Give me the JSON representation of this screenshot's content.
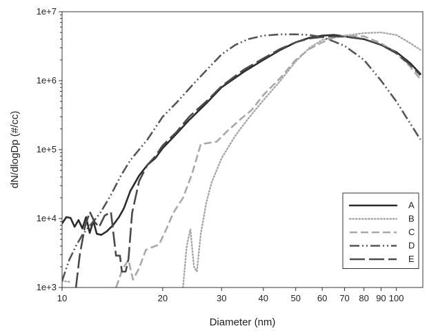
{
  "chart_data": {
    "type": "line",
    "xlabel": "Diameter (nm)",
    "ylabel": "dN/dlogDp (#/cc)",
    "x_scale": "log",
    "y_scale": "log",
    "xlim": [
      10,
      120
    ],
    "ylim": [
      1000,
      10000000
    ],
    "x_ticks": [
      10,
      20,
      30,
      40,
      50,
      60,
      70,
      80,
      90,
      100
    ],
    "x_tick_labels": [
      "10",
      "20",
      "30",
      "40",
      "50",
      "60",
      "70",
      "80",
      "90",
      "100"
    ],
    "y_ticks": [
      1000,
      10000,
      100000,
      1000000,
      10000000
    ],
    "y_tick_labels": [
      "1e+3",
      "1e+4",
      "1e+5",
      "1e+6",
      "1e+7"
    ],
    "grid": false,
    "legend_position": "bottom-right",
    "series": [
      {
        "name": "A",
        "color": "#2b2b2b",
        "dash": "solid",
        "points": [
          [
            10,
            8500
          ],
          [
            10.3,
            10500
          ],
          [
            10.6,
            10200
          ],
          [
            10.9,
            7600
          ],
          [
            11.2,
            9500
          ],
          [
            11.5,
            7200
          ],
          [
            11.8,
            10500
          ],
          [
            12.1,
            6200
          ],
          [
            12.4,
            9200
          ],
          [
            12.7,
            6000
          ],
          [
            13.1,
            5800
          ],
          [
            13.6,
            6500
          ],
          [
            14.2,
            8000
          ],
          [
            14.8,
            10500
          ],
          [
            15.3,
            14000
          ],
          [
            16,
            25000
          ],
          [
            17,
            42000
          ],
          [
            18,
            60000
          ],
          [
            19,
            75000
          ],
          [
            20,
            105000
          ],
          [
            22,
            170000
          ],
          [
            24,
            270000
          ],
          [
            27,
            470000
          ],
          [
            30,
            800000
          ],
          [
            35,
            1350000
          ],
          [
            40,
            2000000
          ],
          [
            45,
            2800000
          ],
          [
            50,
            3600000
          ],
          [
            55,
            4200000
          ],
          [
            60,
            4500000
          ],
          [
            65,
            4600000
          ],
          [
            70,
            4400000
          ],
          [
            80,
            4000000
          ],
          [
            90,
            3300000
          ],
          [
            100,
            2600000
          ],
          [
            110,
            1800000
          ],
          [
            118,
            1250000
          ]
        ]
      },
      {
        "name": "B",
        "color": "#a6a6a6",
        "dash": "dotted",
        "points": [
          [
            10,
            1250
          ],
          [
            10.6,
            1200
          ]
        ]
      },
      {
        "name": "B",
        "color": "#a6a6a6",
        "dash": "dotted",
        "points": [
          [
            23,
            1000
          ],
          [
            23.6,
            4000
          ],
          [
            24.2,
            7000
          ],
          [
            24.8,
            2000
          ],
          [
            25.3,
            1700
          ],
          [
            26,
            6000
          ],
          [
            27,
            17000
          ],
          [
            28,
            33000
          ],
          [
            30,
            75000
          ],
          [
            33,
            160000
          ],
          [
            36,
            280000
          ],
          [
            40,
            520000
          ],
          [
            45,
            1000000
          ],
          [
            50,
            1900000
          ],
          [
            55,
            3000000
          ],
          [
            60,
            3900000
          ],
          [
            70,
            4500000
          ],
          [
            80,
            4900000
          ],
          [
            90,
            5000000
          ],
          [
            100,
            4600000
          ],
          [
            110,
            3500000
          ],
          [
            118,
            2800000
          ]
        ]
      },
      {
        "name": "C",
        "color": "#a8a8a8",
        "dash": "dashed",
        "points": [
          [
            14.5,
            1000
          ],
          [
            15.2,
            1900
          ],
          [
            15.8,
            2500
          ],
          [
            16.3,
            1300
          ],
          [
            17,
            1900
          ],
          [
            17.8,
            3500
          ],
          [
            18.5,
            3800
          ],
          [
            19.5,
            4200
          ],
          [
            20.5,
            7000
          ],
          [
            21.5,
            12000
          ],
          [
            23,
            20000
          ],
          [
            24.5,
            45000
          ],
          [
            26,
            120000
          ],
          [
            27.5,
            125000
          ],
          [
            29,
            130000
          ],
          [
            31,
            180000
          ],
          [
            34,
            270000
          ],
          [
            37,
            380000
          ],
          [
            40,
            620000
          ],
          [
            45,
            1100000
          ],
          [
            50,
            2000000
          ],
          [
            55,
            2900000
          ],
          [
            60,
            3600000
          ],
          [
            65,
            4200000
          ],
          [
            70,
            4500000
          ],
          [
            80,
            4400000
          ],
          [
            90,
            3500000
          ],
          [
            100,
            2500000
          ],
          [
            110,
            1600000
          ],
          [
            118,
            1050000
          ]
        ]
      },
      {
        "name": "D",
        "color": "#555555",
        "dash": "dash-dot-dot",
        "points": [
          [
            10,
            1250
          ],
          [
            10.5,
            2500
          ],
          [
            11,
            4000
          ],
          [
            11.5,
            5800
          ],
          [
            12,
            7500
          ],
          [
            12.5,
            9500
          ],
          [
            13,
            12000
          ],
          [
            14,
            22000
          ],
          [
            15,
            42000
          ],
          [
            16,
            70000
          ],
          [
            18,
            140000
          ],
          [
            20,
            300000
          ],
          [
            22,
            480000
          ],
          [
            25,
            950000
          ],
          [
            28,
            1700000
          ],
          [
            30,
            2400000
          ],
          [
            33,
            3300000
          ],
          [
            36,
            4000000
          ],
          [
            40,
            4500000
          ],
          [
            45,
            4700000
          ],
          [
            50,
            4700000
          ],
          [
            55,
            4600000
          ],
          [
            60,
            4300000
          ],
          [
            65,
            3700000
          ],
          [
            70,
            3200000
          ],
          [
            80,
            2000000
          ],
          [
            90,
            1000000
          ],
          [
            100,
            500000
          ],
          [
            110,
            240000
          ],
          [
            118,
            140000
          ]
        ]
      },
      {
        "name": "E",
        "color": "#4a4a4a",
        "dash": "long-dash",
        "points": [
          [
            11,
            1000
          ],
          [
            11.3,
            3000
          ],
          [
            11.7,
            7500
          ],
          [
            12.1,
            12500
          ],
          [
            12.5,
            9000
          ],
          [
            12.9,
            7500
          ],
          [
            13.4,
            11000
          ],
          [
            14,
            12500
          ],
          [
            14.5,
            2900
          ],
          [
            14.9,
            2900
          ],
          [
            15.1,
            1700
          ],
          [
            15.5,
            1700
          ],
          [
            15.8,
            2600
          ],
          [
            16.2,
            12000
          ],
          [
            17,
            35000
          ],
          [
            18,
            60000
          ],
          [
            19,
            80000
          ],
          [
            20,
            115000
          ],
          [
            22,
            180000
          ],
          [
            24,
            300000
          ],
          [
            27,
            500000
          ],
          [
            30,
            830000
          ],
          [
            35,
            1450000
          ],
          [
            40,
            2100000
          ],
          [
            45,
            2900000
          ],
          [
            50,
            3600000
          ],
          [
            55,
            4100000
          ],
          [
            60,
            4300000
          ],
          [
            65,
            4400000
          ],
          [
            70,
            4350000
          ],
          [
            80,
            4000000
          ],
          [
            90,
            3300000
          ],
          [
            100,
            2500000
          ],
          [
            110,
            1700000
          ],
          [
            118,
            1200000
          ]
        ]
      }
    ]
  }
}
